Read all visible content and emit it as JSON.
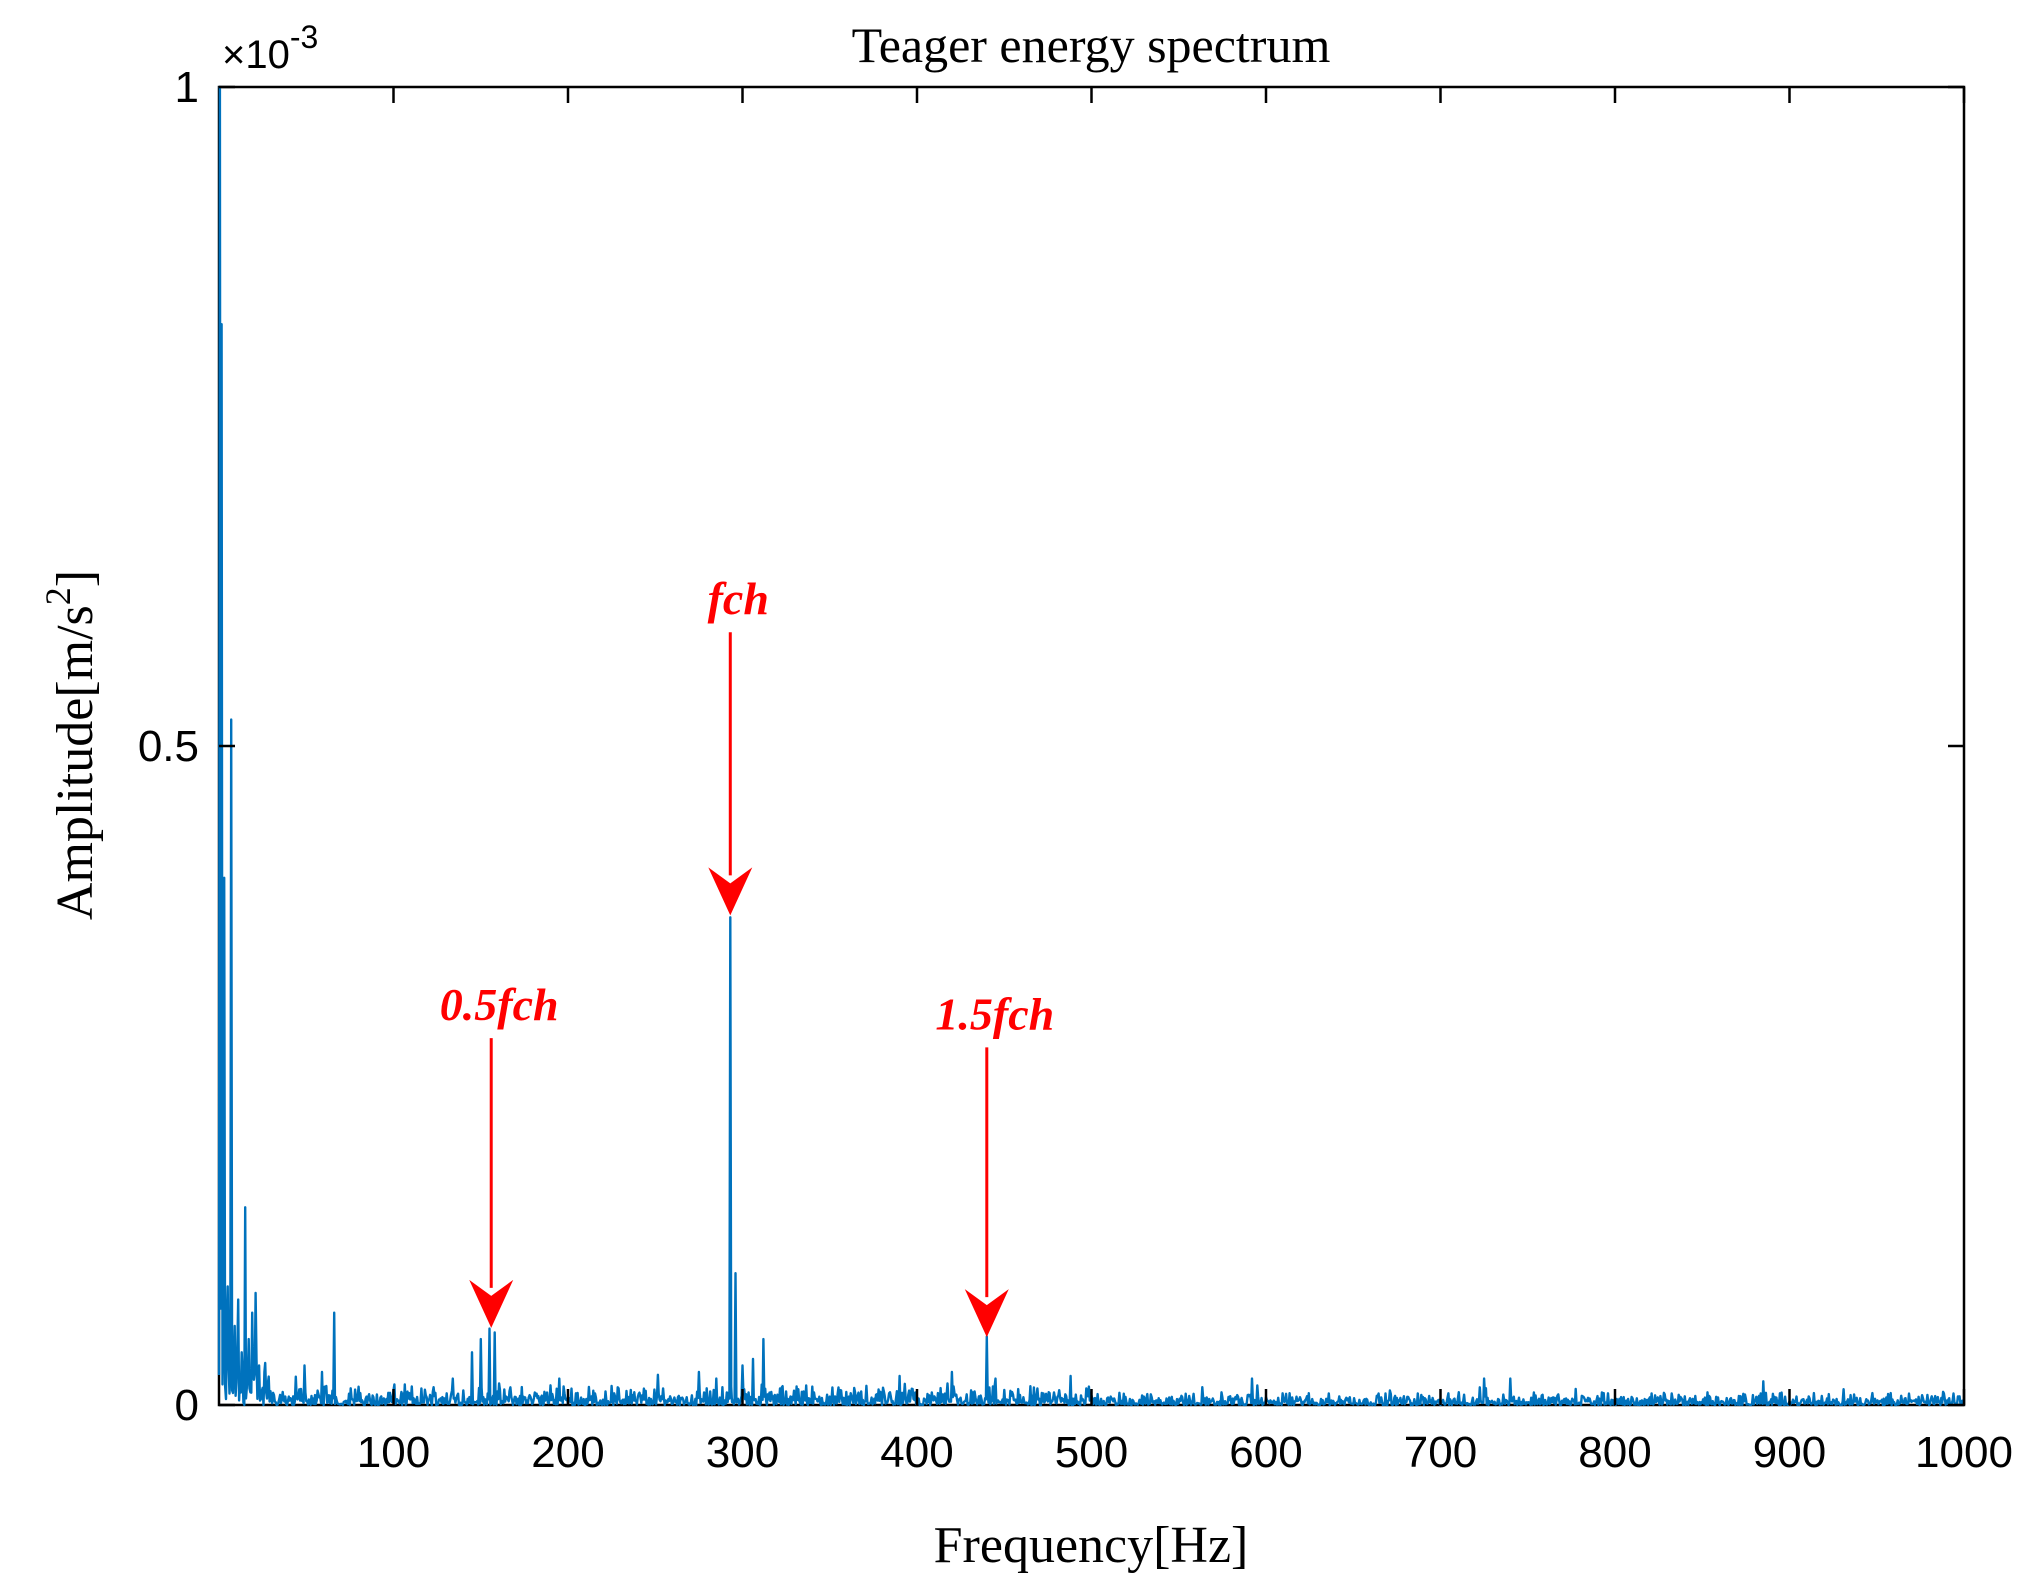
{
  "chart_data": {
    "type": "line",
    "title": "Teager energy spectrum",
    "xlabel": "Frequency[Hz]",
    "ylabel_main": "Amplitude[m/s",
    "ylabel_sup": "2",
    "ylabel_close": "]",
    "exponent_base": "×10",
    "exponent_power": "-3",
    "xlim": [
      0,
      1000
    ],
    "ylim": [
      0,
      1
    ],
    "y_scale_note": "values in units of 1e-3 m/s^2",
    "x_ticks": [
      100,
      200,
      300,
      400,
      500,
      600,
      700,
      800,
      900,
      1000
    ],
    "x_tick_labels": [
      "100",
      "200",
      "300",
      "400",
      "500",
      "600",
      "700",
      "800",
      "900",
      "1000"
    ],
    "y_ticks": [
      0,
      0.5,
      1
    ],
    "y_tick_labels": [
      "0",
      "0.5",
      "1"
    ],
    "line_color": "#0072BD",
    "annotation_color": "#FF0000",
    "peaks": [
      {
        "x": 0.5,
        "y": 1.0
      },
      {
        "x": 1.5,
        "y": 0.82
      },
      {
        "x": 3,
        "y": 0.4
      },
      {
        "x": 5,
        "y": 0.09
      },
      {
        "x": 7,
        "y": 0.52
      },
      {
        "x": 9,
        "y": 0.06
      },
      {
        "x": 11,
        "y": 0.08
      },
      {
        "x": 13,
        "y": 0.04
      },
      {
        "x": 15,
        "y": 0.15
      },
      {
        "x": 17,
        "y": 0.05
      },
      {
        "x": 19,
        "y": 0.07
      },
      {
        "x": 21,
        "y": 0.085
      },
      {
        "x": 23,
        "y": 0.03
      },
      {
        "x": 26,
        "y": 0.025
      },
      {
        "x": 49,
        "y": 0.03
      },
      {
        "x": 59,
        "y": 0.025
      },
      {
        "x": 66,
        "y": 0.07
      },
      {
        "x": 134,
        "y": 0.02
      },
      {
        "x": 145,
        "y": 0.04
      },
      {
        "x": 150,
        "y": 0.05
      },
      {
        "x": 155,
        "y": 0.058
      },
      {
        "x": 158,
        "y": 0.055
      },
      {
        "x": 195,
        "y": 0.02
      },
      {
        "x": 275,
        "y": 0.025
      },
      {
        "x": 285,
        "y": 0.02
      },
      {
        "x": 293,
        "y": 0.37
      },
      {
        "x": 296,
        "y": 0.1
      },
      {
        "x": 300,
        "y": 0.03
      },
      {
        "x": 306,
        "y": 0.035
      },
      {
        "x": 312,
        "y": 0.05
      },
      {
        "x": 390,
        "y": 0.022
      },
      {
        "x": 420,
        "y": 0.025
      },
      {
        "x": 440,
        "y": 0.052
      },
      {
        "x": 445,
        "y": 0.02
      },
      {
        "x": 488,
        "y": 0.022
      },
      {
        "x": 592,
        "y": 0.02
      },
      {
        "x": 725,
        "y": 0.02
      },
      {
        "x": 740,
        "y": 0.02
      },
      {
        "x": 885,
        "y": 0.018
      }
    ],
    "annotations": [
      {
        "label": "0.5fch",
        "x": 156,
        "y_tip": 0.057,
        "y_label": 0.292
      },
      {
        "label": "fch",
        "x": 293,
        "y_tip": 0.37,
        "y_label": 0.6
      },
      {
        "label": "1.5fch",
        "x": 440,
        "y_tip": 0.05,
        "y_label": 0.285
      }
    ]
  }
}
